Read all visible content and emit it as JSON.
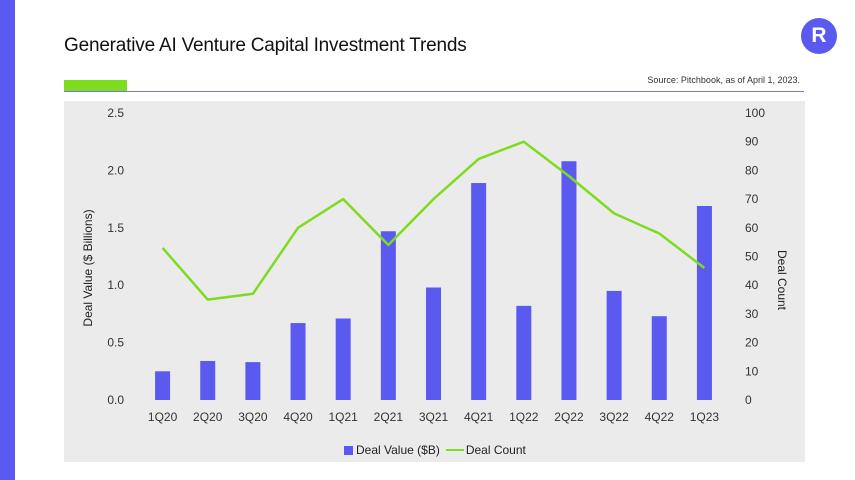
{
  "header": {
    "title": "Generative AI Venture Capital Investment Trends",
    "source": "Source: Pitchbook, as of April 1, 2023.",
    "logo_letter": "R"
  },
  "colors": {
    "accent": "#5a5af0",
    "line": "#7ddc1f",
    "panel": "#ebebeb"
  },
  "chart_data": {
    "type": "bar+line",
    "title": "Generative AI Venture Capital Investment Trends",
    "categories": [
      "1Q20",
      "2Q20",
      "3Q20",
      "4Q20",
      "1Q21",
      "2Q21",
      "3Q21",
      "4Q21",
      "1Q22",
      "2Q22",
      "3Q22",
      "4Q22",
      "1Q23"
    ],
    "series": [
      {
        "name": "Deal Value ($B)",
        "type": "bar",
        "axis": "left",
        "values": [
          0.25,
          0.34,
          0.33,
          0.67,
          0.71,
          1.47,
          0.98,
          1.89,
          0.82,
          2.08,
          0.95,
          0.73,
          1.69
        ]
      },
      {
        "name": "Deal Count",
        "type": "line",
        "axis": "right",
        "values": [
          53,
          35,
          37,
          60,
          70,
          54,
          70,
          84,
          90,
          78,
          65,
          58,
          46
        ]
      }
    ],
    "ylabel": "Deal Value ($ Billions)",
    "y2label": "Deal Count",
    "ylim": [
      0,
      2.5
    ],
    "y2lim": [
      0,
      100
    ],
    "yticks": [
      "0.0",
      "0.5",
      "1.0",
      "1.5",
      "2.0",
      "2.5"
    ],
    "y2ticks": [
      "0",
      "10",
      "20",
      "30",
      "40",
      "50",
      "60",
      "70",
      "80",
      "90",
      "100"
    ],
    "legend": [
      "Deal Value ($B)",
      "Deal Count"
    ],
    "legend_position": "bottom"
  }
}
